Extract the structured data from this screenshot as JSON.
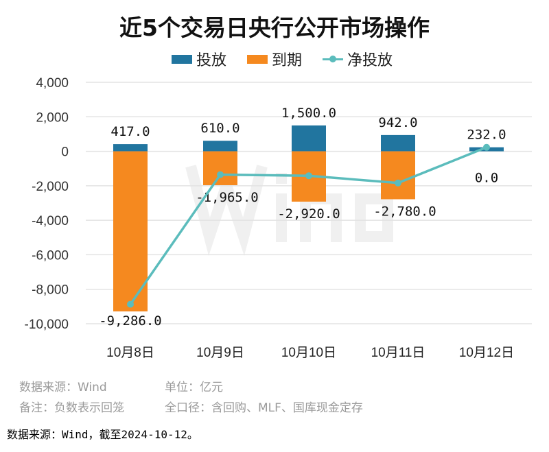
{
  "chart_data": {
    "type": "bar",
    "title": "近5个交易日央行公开市场操作",
    "categories": [
      "10月8日",
      "10月9日",
      "10月10日",
      "10月11日",
      "10月12日"
    ],
    "series": [
      {
        "name": "投放",
        "kind": "bar",
        "color": "#21759f",
        "values": [
          417.0,
          610.0,
          1500.0,
          942.0,
          232.0
        ]
      },
      {
        "name": "到期",
        "kind": "bar",
        "color": "#f5891f",
        "values": [
          -9286.0,
          -1965.0,
          -2920.0,
          -2780.0,
          0.0
        ]
      },
      {
        "name": "净投放",
        "kind": "line",
        "color": "#5bbcbc",
        "values": [
          -8869.0,
          -1355.0,
          -1420.0,
          -1838.0,
          232.0
        ]
      }
    ],
    "data_labels": {
      "投放": [
        "417.0",
        "610.0",
        "1,500.0",
        "942.0",
        "232.0"
      ],
      "到期": [
        "-9,286.0",
        "-1,965.0",
        "-2,920.0",
        "-2,780.0",
        "0.0"
      ]
    },
    "ylim": [
      -10000,
      4000
    ],
    "yticks": [
      4000,
      2000,
      0,
      -2000,
      -4000,
      -6000,
      -8000,
      -10000
    ],
    "ytick_labels": [
      "4,000",
      "2,000",
      "0",
      "-2,000",
      "-4,000",
      "-6,000",
      "-8,000",
      "-10,000"
    ],
    "grid": true,
    "legend_position": "top",
    "stacked": true
  },
  "watermark": "Wind",
  "notes": {
    "source": "数据来源：Wind",
    "unit": "单位：亿元",
    "remark": "备注：负数表示回笼",
    "scope": "全口径：含回购、MLF、国库现金定存"
  },
  "footer": "数据来源：Wind，截至2024-10-12。"
}
